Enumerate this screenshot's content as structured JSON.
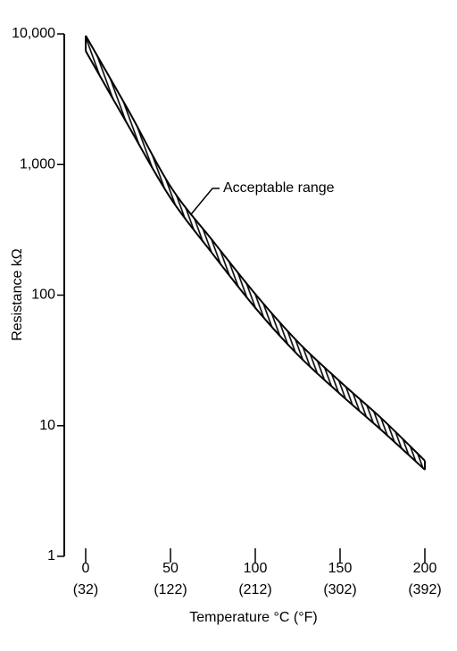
{
  "chart_data": {
    "type": "band",
    "x_axis_label": "Temperature °C (°F)",
    "y_axis_label": "Resistance kΩ",
    "annotation": "Acceptable range",
    "x": [
      0,
      25,
      50,
      75,
      100,
      125,
      150,
      175,
      200
    ],
    "upper": [
      9700,
      2630,
      680,
      260,
      102,
      44,
      21.8,
      11.2,
      5.4
    ],
    "lower": [
      7400,
      2000,
      555,
      206,
      80,
      35,
      17.5,
      9.1,
      4.6
    ],
    "color": "#000000",
    "xlim": [
      0,
      200
    ],
    "xticks": [
      0,
      50,
      100,
      150,
      200
    ],
    "xtick_sublabels": [
      "(32)",
      "(122)",
      "(212)",
      "(302)",
      "(392)"
    ],
    "ylim": [
      1,
      10000
    ],
    "log_y": true,
    "yticks": [
      1,
      10,
      100,
      {
        "value": 1000,
        "label": "1,000"
      },
      {
        "value": 10000,
        "label": "10,000"
      }
    ]
  }
}
